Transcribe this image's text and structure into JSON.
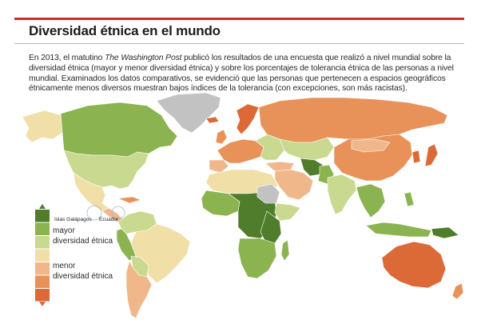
{
  "header": {
    "title": "Diversidad étnica en el mundo"
  },
  "intro": {
    "part1": "En 2013, el matutino ",
    "source": "The Washington Post",
    "part2": " publicó los resultados de una encuesta que realizó a nivel mundial sobre la diversidad étnica (mayor y menor diversidad étnica) y sobre los porcentajes de tolerancia étnica de las personas a nivel mundial. Examinados los datos comparativos, se evidenció que las personas que pertenecen a espacios geográficos étnicamente menos diversos muestran bajos índices de la tolerancia (con excepciones, son más racistas)."
  },
  "legend": {
    "high_line1": "mayor",
    "high_line2": "diversidad étnica",
    "low_line1": "menor",
    "low_line2": "diversidad étnica",
    "scale_colors": [
      "#4f7d2c",
      "#8bb34f",
      "#c9d98f",
      "#f1dfa8",
      "#f0b88a",
      "#e8925a",
      "#dc6a37"
    ]
  },
  "map_labels": {
    "galapagos": "Islas Galápagos",
    "ecuador": "Ecuador"
  },
  "colors": {
    "ocean": "#ffffff",
    "no_data": "#c2c2c2",
    "accent_rule": "#d9262e"
  }
}
